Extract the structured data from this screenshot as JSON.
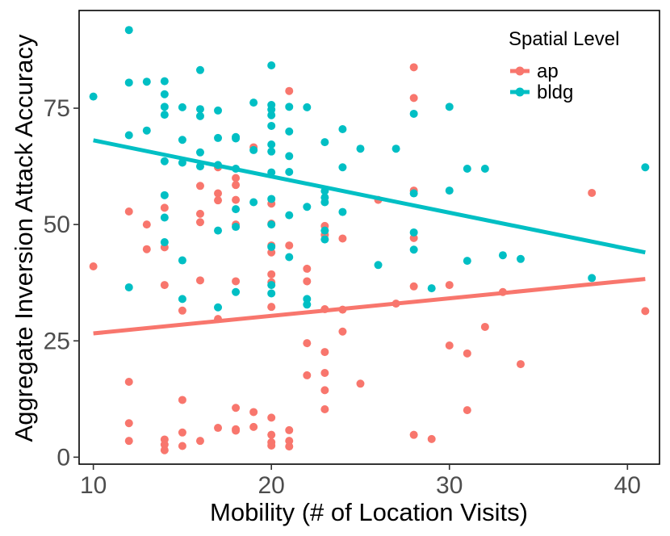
{
  "chart_data": {
    "type": "scatter",
    "xlabel": "Mobility (# of Location Visits)",
    "ylabel": "Aggregate Inversion Attack Accuracy",
    "xlim": [
      9.2,
      41.8
    ],
    "ylim": [
      -1.5,
      96
    ],
    "x_ticks": [
      10,
      20,
      30,
      40
    ],
    "y_ticks": [
      0,
      25,
      50,
      75
    ],
    "x_tick_labels": [
      "10",
      "20",
      "30",
      "40"
    ],
    "y_tick_labels": [
      "0",
      "25",
      "50",
      "75"
    ],
    "grid": false,
    "legend": {
      "title": "Spatial Level",
      "placement": "top-right",
      "entries": [
        "ap",
        "bldg"
      ]
    },
    "series": [
      {
        "name": "ap",
        "color": "#F8766D",
        "trend": {
          "x": [
            10,
            41
          ],
          "y": [
            26.6,
            38.3
          ]
        },
        "points": [
          [
            10,
            41
          ],
          [
            12,
            52.8
          ],
          [
            12,
            16.2
          ],
          [
            12,
            7.3
          ],
          [
            12,
            3.5
          ],
          [
            13,
            50
          ],
          [
            13,
            44.7
          ],
          [
            14,
            53.6
          ],
          [
            14,
            45.1
          ],
          [
            14,
            37
          ],
          [
            14,
            3.8
          ],
          [
            14,
            2.7
          ],
          [
            14,
            1.5
          ],
          [
            15,
            31.5
          ],
          [
            15,
            12.3
          ],
          [
            15,
            5.3
          ],
          [
            15,
            2.4
          ],
          [
            16,
            58.3
          ],
          [
            16,
            52.3
          ],
          [
            16,
            50.5
          ],
          [
            16,
            38
          ],
          [
            16,
            3.5
          ],
          [
            17,
            62.3
          ],
          [
            17,
            56.7
          ],
          [
            17,
            55.2
          ],
          [
            17,
            29.7
          ],
          [
            17,
            6.3
          ],
          [
            18,
            60
          ],
          [
            18,
            58.5
          ],
          [
            18,
            55.3
          ],
          [
            18,
            50
          ],
          [
            18,
            37.8
          ],
          [
            18,
            10.6
          ],
          [
            18,
            6
          ],
          [
            18,
            5.7
          ],
          [
            19,
            66.6
          ],
          [
            19,
            9.7
          ],
          [
            19,
            6.5
          ],
          [
            20,
            54.5
          ],
          [
            20,
            50.2
          ],
          [
            20,
            45.5
          ],
          [
            20,
            44
          ],
          [
            20,
            39.3
          ],
          [
            20,
            37.6
          ],
          [
            20,
            32.3
          ],
          [
            20,
            8.5
          ],
          [
            20,
            4.8
          ],
          [
            20,
            3.2
          ],
          [
            20,
            2.5
          ],
          [
            21,
            78.7
          ],
          [
            21,
            45.5
          ],
          [
            21,
            5.8
          ],
          [
            21,
            3.5
          ],
          [
            21,
            2.3
          ],
          [
            22,
            40.5
          ],
          [
            22,
            37.8
          ],
          [
            22,
            24.5
          ],
          [
            22,
            17.6
          ],
          [
            23,
            49.7
          ],
          [
            23,
            47.8
          ],
          [
            23,
            31.8
          ],
          [
            23,
            22.6
          ],
          [
            23,
            18.1
          ],
          [
            23,
            14.4
          ],
          [
            23,
            10.3
          ],
          [
            24,
            47
          ],
          [
            24,
            31.7
          ],
          [
            24,
            27
          ],
          [
            25,
            15.8
          ],
          [
            26,
            55.3
          ],
          [
            27,
            33
          ],
          [
            28,
            83.8
          ],
          [
            28,
            77.2
          ],
          [
            28,
            57.3
          ],
          [
            28,
            47.1
          ],
          [
            28,
            36.7
          ],
          [
            28,
            4.8
          ],
          [
            29,
            3.9
          ],
          [
            30,
            37
          ],
          [
            30,
            24
          ],
          [
            31,
            22.3
          ],
          [
            31,
            10.1
          ],
          [
            32,
            28
          ],
          [
            33,
            35.5
          ],
          [
            34,
            20
          ],
          [
            38,
            56.8
          ],
          [
            41,
            31.4
          ]
        ]
      },
      {
        "name": "bldg",
        "color": "#00BFC4",
        "trend": {
          "x": [
            10,
            41
          ],
          "y": [
            68.1,
            44
          ]
        },
        "points": [
          [
            10,
            77.5
          ],
          [
            12,
            91.8
          ],
          [
            12,
            80.5
          ],
          [
            12,
            69.2
          ],
          [
            12,
            36.5
          ],
          [
            13,
            80.7
          ],
          [
            13,
            70.2
          ],
          [
            14,
            80.8
          ],
          [
            14,
            78
          ],
          [
            14,
            75.3
          ],
          [
            14,
            73.6
          ],
          [
            14,
            63.6
          ],
          [
            14,
            56.3
          ],
          [
            14,
            51.5
          ],
          [
            14,
            46.2
          ],
          [
            15,
            75.2
          ],
          [
            15,
            68.2
          ],
          [
            15,
            63.3
          ],
          [
            15,
            42.3
          ],
          [
            15,
            34
          ],
          [
            16,
            83.2
          ],
          [
            16,
            74.8
          ],
          [
            16,
            73.3
          ],
          [
            16,
            65.5
          ],
          [
            16,
            62.5
          ],
          [
            17,
            74.5
          ],
          [
            17,
            68.6
          ],
          [
            17,
            62.8
          ],
          [
            17,
            48.7
          ],
          [
            17,
            32.2
          ],
          [
            18,
            68.8
          ],
          [
            18,
            68.5
          ],
          [
            18,
            62
          ],
          [
            18,
            53.3
          ],
          [
            18,
            49.5
          ],
          [
            18,
            35.5
          ],
          [
            19,
            76.2
          ],
          [
            19,
            66
          ],
          [
            19,
            54.8
          ],
          [
            20,
            84.2
          ],
          [
            20,
            75.7
          ],
          [
            20,
            74.7
          ],
          [
            20,
            73.5
          ],
          [
            20,
            71.2
          ],
          [
            20,
            67.2
          ],
          [
            20,
            65.7
          ],
          [
            20,
            61.2
          ],
          [
            20,
            55.5
          ],
          [
            20,
            50
          ],
          [
            20,
            45.2
          ],
          [
            20,
            37
          ],
          [
            20,
            35.2
          ],
          [
            21,
            75.3
          ],
          [
            21,
            70
          ],
          [
            21,
            64.7
          ],
          [
            21,
            61.3
          ],
          [
            21,
            52
          ],
          [
            21,
            43
          ],
          [
            22,
            75.2
          ],
          [
            22,
            53.8
          ],
          [
            22,
            34
          ],
          [
            22,
            32.8
          ],
          [
            23,
            67.7
          ],
          [
            23,
            57.2
          ],
          [
            23,
            55.8
          ],
          [
            23,
            54.8
          ],
          [
            23,
            48.7
          ],
          [
            23,
            46.8
          ],
          [
            24,
            70.5
          ],
          [
            24,
            62.3
          ],
          [
            24,
            52.7
          ],
          [
            25,
            66.3
          ],
          [
            26,
            41.3
          ],
          [
            27,
            66.3
          ],
          [
            28,
            73.8
          ],
          [
            28,
            56.7
          ],
          [
            28,
            48.3
          ],
          [
            28,
            44.6
          ],
          [
            29,
            36.3
          ],
          [
            30,
            75.3
          ],
          [
            30,
            57.3
          ],
          [
            31,
            62
          ],
          [
            31,
            42.2
          ],
          [
            32,
            62
          ],
          [
            33,
            43.4
          ],
          [
            34,
            42.6
          ],
          [
            38,
            38.5
          ],
          [
            41,
            62.3
          ]
        ]
      }
    ]
  }
}
